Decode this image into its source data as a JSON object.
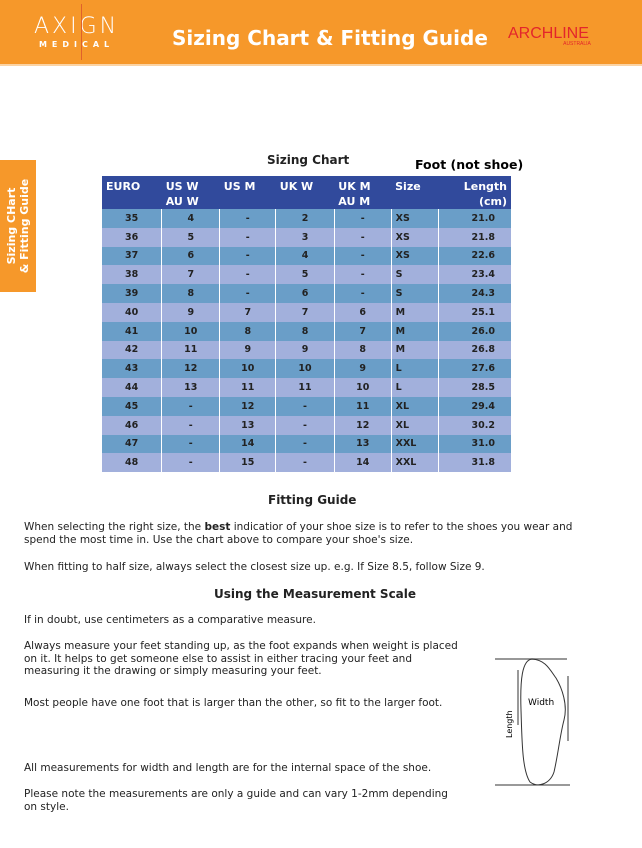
{
  "header": {
    "brand": "AXIGN",
    "brand_sub": "MEDICAL",
    "title": "Sizing Chart & Fitting Guide",
    "partner": "ARCHLINE",
    "partner_sub": "AUSTRALIA"
  },
  "side_tab": {
    "line1": "Sizing CHart",
    "line2": "& Fitting Guide"
  },
  "chart": {
    "title": "Sizing Chart",
    "note": "Foot (not shoe)",
    "headers": [
      "EURO",
      "US W\nAU W",
      "US M",
      "UK W",
      "UK M\nAU M",
      "Size",
      "Length\n(cm)"
    ],
    "rows": [
      [
        "35",
        "4",
        "-",
        "2",
        "-",
        "XS",
        "21.0"
      ],
      [
        "36",
        "5",
        "-",
        "3",
        "-",
        "XS",
        "21.8"
      ],
      [
        "37",
        "6",
        "-",
        "4",
        "-",
        "XS",
        "22.6"
      ],
      [
        "38",
        "7",
        "-",
        "5",
        "-",
        "S",
        "23.4"
      ],
      [
        "39",
        "8",
        "-",
        "6",
        "-",
        "S",
        "24.3"
      ],
      [
        "40",
        "9",
        "7",
        "7",
        "6",
        "M",
        "25.1"
      ],
      [
        "41",
        "10",
        "8",
        "8",
        "7",
        "M",
        "26.0"
      ],
      [
        "42",
        "11",
        "9",
        "9",
        "8",
        "M",
        "26.8"
      ],
      [
        "43",
        "12",
        "10",
        "10",
        "9",
        "L",
        "27.6"
      ],
      [
        "44",
        "13",
        "11",
        "11",
        "10",
        "L",
        "28.5"
      ],
      [
        "45",
        "-",
        "12",
        "-",
        "11",
        "XL",
        "29.4"
      ],
      [
        "46",
        "-",
        "13",
        "-",
        "12",
        "XL",
        "30.2"
      ],
      [
        "47",
        "-",
        "14",
        "-",
        "13",
        "XXL",
        "31.0"
      ],
      [
        "48",
        "-",
        "15",
        "-",
        "14",
        "XXL",
        "31.8"
      ]
    ]
  },
  "fitting": {
    "title": "Fitting Guide",
    "p1_a": "When selecting the right size, the ",
    "p1_b": "best",
    "p1_c": " indicatior of your shoe size is to refer to the shoes you wear and spend the most time in. Use the chart above to compare your shoe's size.",
    "p2": "When fitting to half size, always select the closest size up. e.g. If Size 8.5, follow Size 9."
  },
  "measure": {
    "title": "Using the Measurement Scale",
    "p1": "If in doubt, use centimeters as a comparative measure.",
    "p2": "Always measure your feet standing up, as the foot expands when weight is placed on it. It helps to get someone else to assist in either tracing your feet and measuring it the drawing or simply measuring your feet.",
    "p3": "Most people have one foot that is larger than the other, so fit to the larger foot.",
    "p4": "All measurements for width and length are for the internal space of the shoe.",
    "p5": "Please note the measurements are only a guide and can vary 1-2mm depending on style.",
    "diagram_width": "Width",
    "diagram_length": "Length"
  }
}
